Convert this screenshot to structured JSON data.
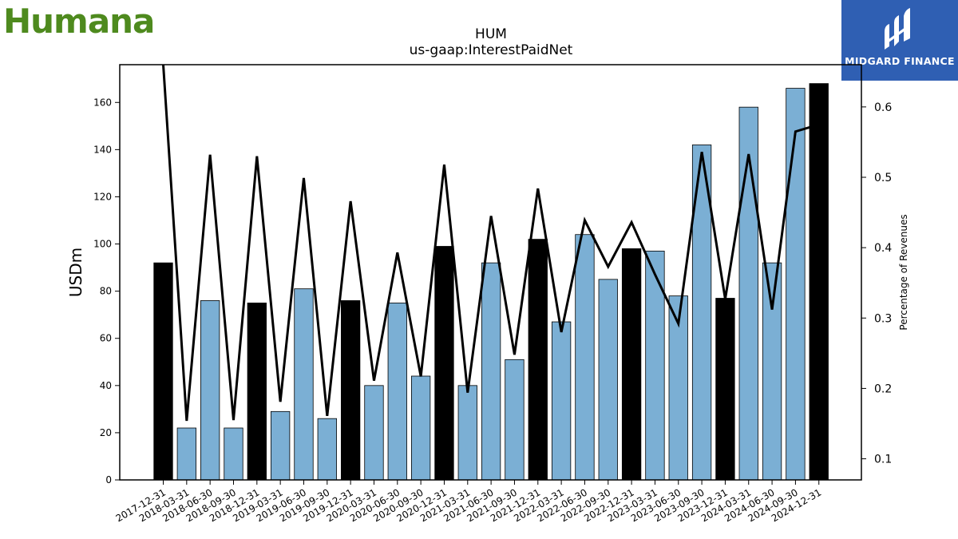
{
  "brand_left": {
    "name": "Humana",
    "color": "#4e8a1e"
  },
  "brand_right": {
    "name": "MIDGARD FINANCE",
    "color": "#2f5fb3"
  },
  "chart_data": {
    "type": "bar",
    "title": "HUM",
    "subtitle": "us-gaap:InterestPaidNet",
    "ylabel": "USDm",
    "y2label": "Percentage of Revenues",
    "ylim": [
      0,
      176
    ],
    "y2lim": [
      0.07,
      0.66
    ],
    "yticks": [
      0,
      20,
      40,
      60,
      80,
      100,
      120,
      140,
      160
    ],
    "y2ticks": [
      0.1,
      0.2,
      0.3,
      0.4,
      0.5,
      0.6
    ],
    "categories": [
      "2017-12-31",
      "2018-03-31",
      "2018-06-30",
      "2018-09-30",
      "2018-12-31",
      "2019-03-31",
      "2019-06-30",
      "2019-09-30",
      "2019-12-31",
      "2020-03-31",
      "2020-06-30",
      "2020-09-30",
      "2020-12-31",
      "2021-03-31",
      "2021-06-30",
      "2021-09-30",
      "2021-12-31",
      "2022-03-31",
      "2022-06-30",
      "2022-09-30",
      "2022-12-31",
      "2023-03-31",
      "2023-06-30",
      "2023-09-30",
      "2023-12-31",
      "2024-03-31",
      "2024-06-30",
      "2024-09-30",
      "2024-12-31"
    ],
    "series": [
      {
        "kind": "bar",
        "values": [
          92,
          22,
          76,
          22,
          75,
          29,
          81,
          26,
          76,
          40,
          75,
          44,
          99,
          40,
          92,
          51,
          102,
          67,
          104,
          85,
          98,
          97,
          78,
          142,
          77,
          158,
          92,
          166,
          168
        ],
        "annual": [
          true,
          false,
          false,
          false,
          true,
          false,
          false,
          false,
          true,
          false,
          false,
          false,
          true,
          false,
          false,
          false,
          true,
          false,
          false,
          false,
          true,
          false,
          false,
          false,
          true,
          false,
          false,
          false,
          true
        ],
        "color_annual": "#000000",
        "color_quarter": "#7bafd4"
      },
      {
        "kind": "line",
        "axis": "right",
        "values": [
          0.66,
          0.154,
          0.532,
          0.155,
          0.53,
          0.181,
          0.499,
          0.161,
          0.466,
          0.211,
          0.393,
          0.217,
          0.518,
          0.194,
          0.445,
          0.248,
          0.484,
          0.28,
          0.439,
          0.373,
          0.436,
          0.362,
          0.292,
          0.536,
          0.327,
          0.533,
          0.312,
          0.565,
          0.575
        ],
        "color": "#000000"
      }
    ]
  }
}
